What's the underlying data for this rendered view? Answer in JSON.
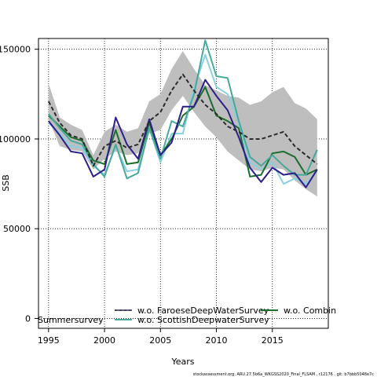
{
  "chart_data": {
    "type": "line",
    "xlabel": "Years",
    "ylabel": "SSB",
    "xlim": [
      1994.1,
      2020.0
    ],
    "ylim": [
      -5500,
      156000
    ],
    "x_ticks": [
      1995,
      2000,
      2005,
      2010,
      2015
    ],
    "y_ticks": [
      0,
      50000,
      100000,
      150000
    ],
    "grid": true,
    "legend_placement": "bottom",
    "x": [
      1995,
      1996,
      1997,
      1998,
      1999,
      2000,
      2001,
      2002,
      2003,
      2004,
      2005,
      2006,
      2007,
      2008,
      2009,
      2010,
      2011,
      2012,
      2013,
      2014,
      2015,
      2016,
      2017,
      2018,
      2019
    ],
    "band": {
      "upper": [
        131000,
        112000,
        108000,
        105000,
        91000,
        104000,
        108000,
        104000,
        106000,
        121000,
        125000,
        139000,
        149000,
        139000,
        130000,
        127000,
        124000,
        123000,
        119000,
        121000,
        126000,
        129000,
        120000,
        117000,
        111000
      ],
      "lower": [
        111000,
        96000,
        94000,
        93000,
        83000,
        89000,
        93000,
        91000,
        92000,
        103000,
        105000,
        116000,
        124000,
        115000,
        107000,
        101000,
        93000,
        88000,
        83000,
        82000,
        84000,
        83000,
        77000,
        72000,
        68000
      ],
      "color": "#bebebe"
    },
    "series": [
      {
        "name": "",
        "color": "#2b2b2b",
        "dashed": true,
        "values": [
          121000,
          109000,
          102000,
          100000,
          85000,
          96000,
          99000,
          95000,
          97000,
          110000,
          115000,
          127000,
          136000,
          127000,
          119000,
          114000,
          107000,
          104000,
          100000,
          100000,
          102000,
          104000,
          96000,
          91000,
          86000
        ]
      },
      {
        "name": "w.o. FaroeseDeepWaterSurvey",
        "color": "#2d1e8a",
        "dashed": false,
        "values": [
          110000,
          102000,
          93000,
          92000,
          79000,
          83000,
          112000,
          97000,
          89000,
          111000,
          91000,
          98000,
          118000,
          118000,
          133000,
          124000,
          116000,
          101000,
          84000,
          76000,
          84000,
          80000,
          81000,
          73000,
          83000
        ]
      },
      {
        "name": "w.o. ScottishDeepwaterSurvey",
        "color": "#48a89b",
        "dashed": false,
        "values": [
          114000,
          106000,
          99000,
          97000,
          86000,
          79000,
          97000,
          78000,
          81000,
          106000,
          89000,
          110000,
          107000,
          125000,
          155000,
          135000,
          134000,
          110000,
          90000,
          85000,
          91000,
          85000,
          80000,
          80000,
          94000
        ]
      },
      {
        "name": "w.o. Combin",
        "color": "#1b6e2e",
        "dashed": false,
        "values": [
          113000,
          107000,
          101000,
          99000,
          88000,
          86000,
          105000,
          86000,
          87000,
          109000,
          91000,
          100000,
          113000,
          118000,
          129000,
          113000,
          110000,
          106000,
          79000,
          80000,
          92000,
          93000,
          90000,
          80000,
          83000
        ]
      },
      {
        "name": "",
        "color": "#88cfe2",
        "dashed": false,
        "values": [
          109000,
          103000,
          96000,
          95000,
          85000,
          80000,
          96000,
          82000,
          83000,
          106000,
          87000,
          103000,
          103000,
          128000,
          147000,
          129000,
          125000,
          109000,
          87000,
          83000,
          87000,
          75000,
          78000,
          75000,
          82000
        ]
      }
    ],
    "legend_labels": [
      "w.o. FaroeseDeepWaterSurvey",
      "w.o. Combin",
      "Summersurvey",
      "w.o. ScottishDeepwaterSurvey"
    ]
  },
  "footer_text": "stockassessment.org,  ARU.27.5b6a_WKGSS2020_Final_FLSAM  ,  r12176  ,  git: b7bbb5048e7c"
}
